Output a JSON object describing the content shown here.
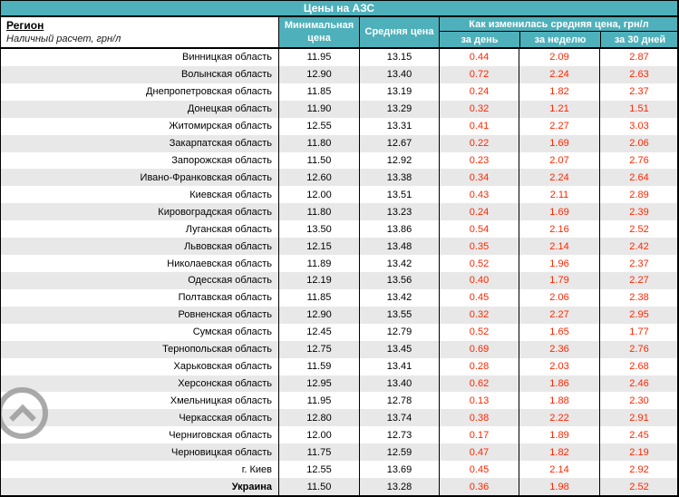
{
  "title": "Цены на АЗС",
  "colors": {
    "teal": "#4eb0ba",
    "stripe_gray": "#e8e8e8",
    "change_red": "#ff2600",
    "scroll_gray": "#969696",
    "border_black": "#000000"
  },
  "header": {
    "region_title": "Регион",
    "region_subtitle": "Наличный расчет, грн/л",
    "col_min_price": "Минимальная цена",
    "col_avg_price": "Средняя цена",
    "col_changes_group": "Как изменилась средняя цена, грн/л",
    "col_change_day": "за день",
    "col_change_week": "за неделю",
    "col_change_30days": "за 30 дней"
  },
  "scroll_top": {
    "icon": "chevron-up-icon"
  },
  "table": {
    "rows": [
      {
        "region": "Винницкая область",
        "min": "11.95",
        "avg": "13.15",
        "day": "0.44",
        "week": "2.09",
        "month": "2.87"
      },
      {
        "region": "Волынская область",
        "min": "12.90",
        "avg": "13.40",
        "day": "0.72",
        "week": "2.24",
        "month": "2.63"
      },
      {
        "region": "Днепропетровская область",
        "min": "11.85",
        "avg": "13.19",
        "day": "0.24",
        "week": "1.82",
        "month": "2.37"
      },
      {
        "region": "Донецкая область",
        "min": "11.90",
        "avg": "13.29",
        "day": "0.32",
        "week": "1.21",
        "month": "1.51"
      },
      {
        "region": "Житомирская область",
        "min": "12.55",
        "avg": "13.31",
        "day": "0.41",
        "week": "2.27",
        "month": "3.03"
      },
      {
        "region": "Закарпатская область",
        "min": "11.80",
        "avg": "12.67",
        "day": "0.22",
        "week": "1.69",
        "month": "2.06"
      },
      {
        "region": "Запорожская область",
        "min": "11.50",
        "avg": "12.92",
        "day": "0.23",
        "week": "2.07",
        "month": "2.76"
      },
      {
        "region": "Ивано-Франковская область",
        "min": "12.60",
        "avg": "13.38",
        "day": "0.34",
        "week": "2.24",
        "month": "2.64"
      },
      {
        "region": "Киевская область",
        "min": "12.00",
        "avg": "13.51",
        "day": "0.43",
        "week": "2.11",
        "month": "2.89"
      },
      {
        "region": "Кировоградская область",
        "min": "11.80",
        "avg": "13.23",
        "day": "0.24",
        "week": "1.69",
        "month": "2.39"
      },
      {
        "region": "Луганская область",
        "min": "13.50",
        "avg": "13.86",
        "day": "0.54",
        "week": "2.16",
        "month": "2.52"
      },
      {
        "region": "Львовская область",
        "min": "12.15",
        "avg": "13.48",
        "day": "0.35",
        "week": "2.14",
        "month": "2.42"
      },
      {
        "region": "Николаевская область",
        "min": "11.89",
        "avg": "13.42",
        "day": "0.52",
        "week": "1.96",
        "month": "2.37"
      },
      {
        "region": "Одесская область",
        "min": "12.19",
        "avg": "13.56",
        "day": "0.40",
        "week": "1.79",
        "month": "2.27"
      },
      {
        "region": "Полтавская область",
        "min": "11.85",
        "avg": "13.42",
        "day": "0.45",
        "week": "2.06",
        "month": "2.38"
      },
      {
        "region": "Ровненская область",
        "min": "12.90",
        "avg": "13.55",
        "day": "0.32",
        "week": "2.27",
        "month": "2.95"
      },
      {
        "region": "Сумская область",
        "min": "12.45",
        "avg": "12.79",
        "day": "0.52",
        "week": "1.65",
        "month": "1.77"
      },
      {
        "region": "Тернопольская область",
        "min": "12.75",
        "avg": "13.45",
        "day": "0.69",
        "week": "2.36",
        "month": "2.76"
      },
      {
        "region": "Харьковская область",
        "min": "11.59",
        "avg": "13.41",
        "day": "0.28",
        "week": "2.03",
        "month": "2.68"
      },
      {
        "region": "Херсонская область",
        "min": "12.95",
        "avg": "13.40",
        "day": "0.62",
        "week": "1.86",
        "month": "2.46"
      },
      {
        "region": "Хмельницкая область",
        "min": "11.95",
        "avg": "12.78",
        "day": "0.13",
        "week": "1.88",
        "month": "2.30"
      },
      {
        "region": "Черкасская область",
        "min": "12.80",
        "avg": "13.74",
        "day": "0.38",
        "week": "2.22",
        "month": "2.91"
      },
      {
        "region": "Черниговская область",
        "min": "12.00",
        "avg": "12.73",
        "day": "0.17",
        "week": "1.89",
        "month": "2.45"
      },
      {
        "region": "Черновицкая область",
        "min": "11.75",
        "avg": "12.59",
        "day": "0.47",
        "week": "1.82",
        "month": "2.19"
      },
      {
        "region": "г. Киев",
        "min": "12.55",
        "avg": "13.69",
        "day": "0.45",
        "week": "2.14",
        "month": "2.92"
      },
      {
        "region": "Украина",
        "min": "11.50",
        "avg": "13.28",
        "day": "0.36",
        "week": "1.98",
        "month": "2.52",
        "bold": true
      }
    ]
  }
}
